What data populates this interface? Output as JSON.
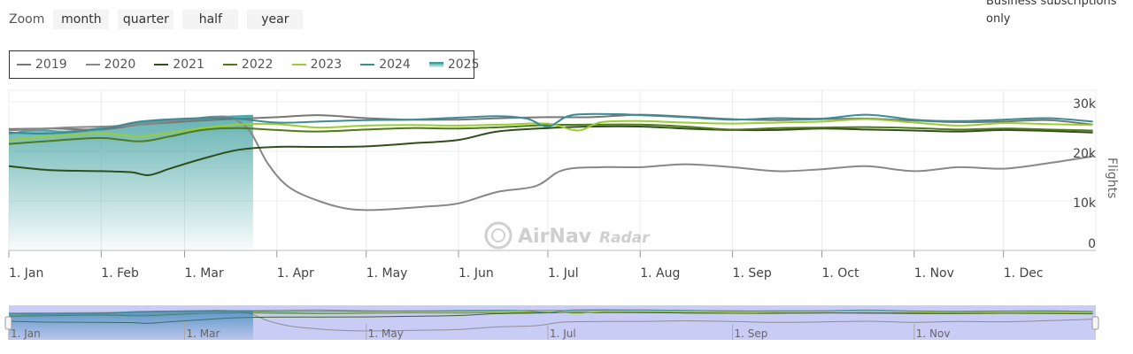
{
  "zoom": {
    "label": "Zoom",
    "buttons": [
      "month",
      "quarter",
      "half",
      "year"
    ]
  },
  "note": "Business subscriptions only",
  "watermark": {
    "brand": "AirNav",
    "product": "Radar"
  },
  "colors": {
    "2019": "#777777",
    "2020": "#888888",
    "2021": "#2f4f1a",
    "2022": "#4f7a1a",
    "2023": "#9acd32",
    "2024": "#3a8c96",
    "2025": "#4aa5a5",
    "navigator": "#c9ccf5"
  },
  "chart_data": {
    "type": "line",
    "ylabel": "Flights",
    "ylim": [
      0,
      30000
    ],
    "yticks": [
      0,
      10000,
      20000,
      30000
    ],
    "ytick_labels": [
      "0",
      "10k",
      "20k",
      "30k"
    ],
    "x_domain": [
      1,
      366
    ],
    "xticks": [
      {
        "label": "1. Jan",
        "day": 1
      },
      {
        "label": "1. Feb",
        "day": 32
      },
      {
        "label": "1. Mar",
        "day": 60
      },
      {
        "label": "1. Apr",
        "day": 91
      },
      {
        "label": "1. May",
        "day": 121
      },
      {
        "label": "1. Jun",
        "day": 152
      },
      {
        "label": "1. Jul",
        "day": 182
      },
      {
        "label": "1. Aug",
        "day": 213
      },
      {
        "label": "1. Sep",
        "day": 244
      },
      {
        "label": "1. Oct",
        "day": 274
      },
      {
        "label": "1. Nov",
        "day": 305
      },
      {
        "label": "1. Dec",
        "day": 335
      }
    ],
    "navigator_ticks": [
      {
        "label": "1. Jan",
        "day": 1
      },
      {
        "label": "1. Mar",
        "day": 60
      },
      {
        "label": "1. May",
        "day": 121
      },
      {
        "label": "1. Jul",
        "day": 182
      },
      {
        "label": "1. Sep",
        "day": 244
      },
      {
        "label": "1. Nov",
        "day": 305
      }
    ],
    "grid": true,
    "legend": "top-left",
    "series": [
      {
        "name": "2019",
        "type": "line",
        "points": [
          [
            1,
            24500
          ],
          [
            15,
            24600
          ],
          [
            32,
            24400
          ],
          [
            45,
            25400
          ],
          [
            60,
            26000
          ],
          [
            75,
            26500
          ],
          [
            91,
            26900
          ],
          [
            105,
            27300
          ],
          [
            121,
            26700
          ],
          [
            136,
            26400
          ],
          [
            152,
            26400
          ],
          [
            167,
            26700
          ],
          [
            182,
            26900
          ],
          [
            197,
            26900
          ],
          [
            213,
            27400
          ],
          [
            228,
            27000
          ],
          [
            244,
            26500
          ],
          [
            259,
            26300
          ],
          [
            274,
            26500
          ],
          [
            289,
            26600
          ],
          [
            305,
            26200
          ],
          [
            320,
            25900
          ],
          [
            335,
            26000
          ],
          [
            350,
            26300
          ],
          [
            365,
            25400
          ]
        ]
      },
      {
        "name": "2020",
        "type": "line",
        "points": [
          [
            1,
            24200
          ],
          [
            20,
            24800
          ],
          [
            40,
            25200
          ],
          [
            60,
            26400
          ],
          [
            70,
            27000
          ],
          [
            76,
            26700
          ],
          [
            82,
            24000
          ],
          [
            88,
            17500
          ],
          [
            95,
            12800
          ],
          [
            105,
            10000
          ],
          [
            115,
            8400
          ],
          [
            125,
            8200
          ],
          [
            140,
            8800
          ],
          [
            152,
            9500
          ],
          [
            165,
            11800
          ],
          [
            178,
            13000
          ],
          [
            187,
            16200
          ],
          [
            200,
            16800
          ],
          [
            213,
            16800
          ],
          [
            228,
            17400
          ],
          [
            244,
            16800
          ],
          [
            259,
            16000
          ],
          [
            274,
            16400
          ],
          [
            289,
            17000
          ],
          [
            305,
            16000
          ],
          [
            320,
            16800
          ],
          [
            335,
            16500
          ],
          [
            350,
            17600
          ],
          [
            365,
            19000
          ]
        ]
      },
      {
        "name": "2021",
        "type": "line",
        "points": [
          [
            1,
            17000
          ],
          [
            15,
            16200
          ],
          [
            32,
            16000
          ],
          [
            42,
            15800
          ],
          [
            48,
            15200
          ],
          [
            55,
            16500
          ],
          [
            66,
            18500
          ],
          [
            78,
            20300
          ],
          [
            91,
            20900
          ],
          [
            105,
            20900
          ],
          [
            121,
            21000
          ],
          [
            136,
            21600
          ],
          [
            152,
            22300
          ],
          [
            165,
            24000
          ],
          [
            182,
            24700
          ],
          [
            197,
            25000
          ],
          [
            213,
            25000
          ],
          [
            228,
            24600
          ],
          [
            244,
            24300
          ],
          [
            259,
            24300
          ],
          [
            274,
            24600
          ],
          [
            289,
            24400
          ],
          [
            305,
            24200
          ],
          [
            320,
            24000
          ],
          [
            335,
            24300
          ],
          [
            350,
            24100
          ],
          [
            365,
            23800
          ]
        ]
      },
      {
        "name": "2022",
        "type": "line",
        "points": [
          [
            1,
            21500
          ],
          [
            15,
            22100
          ],
          [
            32,
            22700
          ],
          [
            45,
            22000
          ],
          [
            55,
            23000
          ],
          [
            66,
            24300
          ],
          [
            78,
            24700
          ],
          [
            91,
            24300
          ],
          [
            105,
            24000
          ],
          [
            121,
            24400
          ],
          [
            136,
            24700
          ],
          [
            152,
            24600
          ],
          [
            167,
            24900
          ],
          [
            182,
            25300
          ],
          [
            197,
            25400
          ],
          [
            213,
            25400
          ],
          [
            228,
            25000
          ],
          [
            244,
            24400
          ],
          [
            259,
            24700
          ],
          [
            274,
            24800
          ],
          [
            289,
            24900
          ],
          [
            305,
            24700
          ],
          [
            320,
            24400
          ],
          [
            335,
            24600
          ],
          [
            350,
            24400
          ],
          [
            365,
            24200
          ]
        ]
      },
      {
        "name": "2023",
        "type": "line",
        "points": [
          [
            1,
            22300
          ],
          [
            15,
            23000
          ],
          [
            32,
            23600
          ],
          [
            45,
            23000
          ],
          [
            55,
            23800
          ],
          [
            66,
            24700
          ],
          [
            78,
            25400
          ],
          [
            91,
            25500
          ],
          [
            105,
            24800
          ],
          [
            121,
            25200
          ],
          [
            136,
            25300
          ],
          [
            152,
            25200
          ],
          [
            167,
            25400
          ],
          [
            182,
            25600
          ],
          [
            192,
            24200
          ],
          [
            200,
            25900
          ],
          [
            213,
            26100
          ],
          [
            228,
            25800
          ],
          [
            244,
            25600
          ],
          [
            259,
            25800
          ],
          [
            274,
            26000
          ],
          [
            289,
            26500
          ],
          [
            305,
            25800
          ],
          [
            320,
            25200
          ],
          [
            335,
            25700
          ],
          [
            350,
            25500
          ],
          [
            365,
            25300
          ]
        ]
      },
      {
        "name": "2024",
        "type": "line",
        "points": [
          [
            1,
            23800
          ],
          [
            15,
            23600
          ],
          [
            32,
            24500
          ],
          [
            45,
            26000
          ],
          [
            60,
            26600
          ],
          [
            75,
            26700
          ],
          [
            91,
            25800
          ],
          [
            105,
            26000
          ],
          [
            121,
            26300
          ],
          [
            136,
            26400
          ],
          [
            152,
            26800
          ],
          [
            165,
            27100
          ],
          [
            175,
            26600
          ],
          [
            182,
            25000
          ],
          [
            190,
            27300
          ],
          [
            205,
            27500
          ],
          [
            213,
            27300
          ],
          [
            228,
            26900
          ],
          [
            244,
            26400
          ],
          [
            259,
            26700
          ],
          [
            274,
            26600
          ],
          [
            289,
            27400
          ],
          [
            305,
            26400
          ],
          [
            320,
            26100
          ],
          [
            335,
            26400
          ],
          [
            350,
            26700
          ],
          [
            365,
            26000
          ]
        ]
      },
      {
        "name": "2025",
        "type": "area",
        "points": [
          [
            1,
            23500
          ],
          [
            10,
            24300
          ],
          [
            20,
            24000
          ],
          [
            32,
            24700
          ],
          [
            45,
            25700
          ],
          [
            55,
            26200
          ],
          [
            66,
            26600
          ],
          [
            75,
            27000
          ],
          [
            83,
            27200
          ]
        ]
      }
    ]
  }
}
